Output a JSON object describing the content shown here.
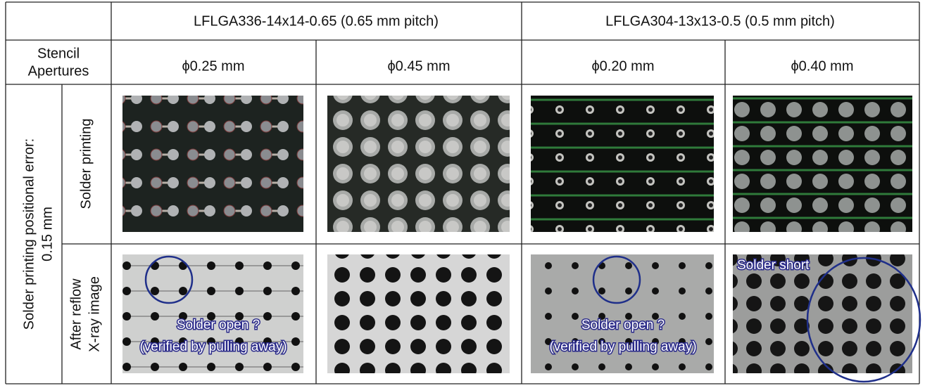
{
  "table": {
    "package_headers": [
      "LFLGA336-14x14-0.65 (0.65 mm pitch)",
      "LFLGA304-13x13-0.5 (0.5 mm pitch)"
    ],
    "stencil_label": [
      "Stencil",
      "Apertures"
    ],
    "apertures": [
      "ϕ0.25 mm",
      "ϕ0.45 mm",
      "ϕ0.20 mm",
      "ϕ0.40 mm"
    ],
    "group_label": [
      "Solder printing positional error:",
      "0.15 mm"
    ],
    "row_labels": [
      [
        "Solder printing"
      ],
      [
        "After reflow",
        "X-ray image"
      ]
    ],
    "annotations": {
      "open_1": [
        "Solder open ?",
        "(verified by pulling away)"
      ],
      "open_2": [
        "Solder open ?",
        "(verified by pulling away)"
      ],
      "short": "Solder short"
    }
  }
}
